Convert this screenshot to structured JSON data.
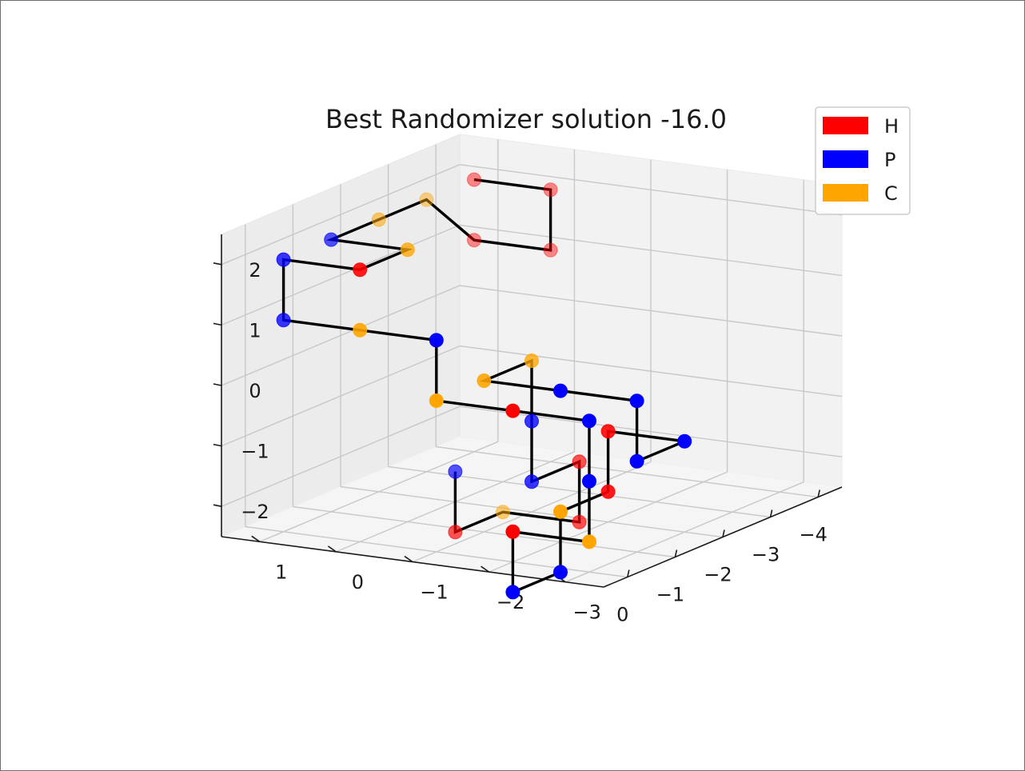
{
  "chart_data": {
    "type": "scatter3d",
    "title": "Best Randomizer solution -16.0",
    "xlabel": "",
    "ylabel": "",
    "zlabel": "",
    "xlim": [
      -4.5,
      0.5
    ],
    "ylim": [
      -3.5,
      1.5
    ],
    "zlim": [
      -2.5,
      2.5
    ],
    "x_ticks": [
      "−4",
      "−3",
      "−2",
      "−1",
      "0"
    ],
    "y_ticks": [
      "−3",
      "−2",
      "−1",
      "0",
      "1"
    ],
    "z_ticks": [
      "−2",
      "−1",
      "0",
      "1",
      "2"
    ],
    "grid": true,
    "legend_position": "top-right",
    "legend": [
      {
        "label": "H",
        "color": "#ff0000"
      },
      {
        "label": "P",
        "color": "#0000ff"
      },
      {
        "label": "C",
        "color": "#ffa500"
      }
    ],
    "line_color": "#000000",
    "points": [
      {
        "x": -4,
        "y": 1,
        "z": 2,
        "type": "H"
      },
      {
        "x": -4,
        "y": 0,
        "z": 2,
        "type": "H"
      },
      {
        "x": -4,
        "y": 0,
        "z": 1,
        "type": "H"
      },
      {
        "x": -4,
        "y": 1,
        "z": 1,
        "type": "H"
      },
      {
        "x": -3,
        "y": 1,
        "z": 2,
        "type": "C"
      },
      {
        "x": -2,
        "y": 1,
        "z": 2,
        "type": "C"
      },
      {
        "x": -1,
        "y": 1,
        "z": 2,
        "type": "P"
      },
      {
        "x": -1,
        "y": 0,
        "z": 2,
        "type": "C"
      },
      {
        "x": 0,
        "y": 0,
        "z": 2,
        "type": "H"
      },
      {
        "x": 0,
        "y": 1,
        "z": 2,
        "type": "P"
      },
      {
        "x": 0,
        "y": 1,
        "z": 1,
        "type": "P"
      },
      {
        "x": 0,
        "y": 0,
        "z": 1,
        "type": "C"
      },
      {
        "x": 0,
        "y": -1,
        "z": 1,
        "type": "P"
      },
      {
        "x": 0,
        "y": -1,
        "z": 0,
        "type": "C"
      },
      {
        "x": 0,
        "y": -2,
        "z": 0,
        "type": "H"
      },
      {
        "x": 0,
        "y": -3,
        "z": 0,
        "type": "P"
      },
      {
        "x": 0,
        "y": -3,
        "z": -1,
        "type": "P"
      },
      {
        "x": 0,
        "y": -3,
        "z": -2,
        "type": "C"
      },
      {
        "x": 0,
        "y": -2,
        "z": -2,
        "type": "H"
      },
      {
        "x": 0,
        "y": -2,
        "z": -3,
        "type": "P"
      },
      {
        "x": -1,
        "y": -2,
        "z": -3,
        "type": "P"
      },
      {
        "x": -1,
        "y": -2,
        "z": -2,
        "type": "C"
      },
      {
        "x": -2,
        "y": -2,
        "z": -2,
        "type": "H"
      },
      {
        "x": -2,
        "y": -2,
        "z": -1,
        "type": "H"
      },
      {
        "x": -2,
        "y": -3,
        "z": -1,
        "type": "P"
      },
      {
        "x": -1,
        "y": -3,
        "z": -1,
        "type": "P"
      },
      {
        "x": -1,
        "y": -3,
        "z": 0,
        "type": "P"
      },
      {
        "x": -1,
        "y": -2,
        "z": 0,
        "type": "P"
      },
      {
        "x": -1,
        "y": -1,
        "z": 0,
        "type": "C"
      },
      {
        "x": -2,
        "y": -1,
        "z": 0,
        "type": "C"
      },
      {
        "x": -2,
        "y": -1,
        "z": -1,
        "type": "P"
      },
      {
        "x": -2,
        "y": -1,
        "z": -2,
        "type": "P"
      },
      {
        "x": -3,
        "y": -1,
        "z": -2,
        "type": "H"
      },
      {
        "x": -3,
        "y": -1,
        "z": -3,
        "type": "H"
      },
      {
        "x": -3,
        "y": 0,
        "z": -3,
        "type": "C"
      },
      {
        "x": -2,
        "y": 0,
        "z": -3,
        "type": "H"
      },
      {
        "x": -2,
        "y": 0,
        "z": -2,
        "type": "P"
      }
    ]
  }
}
